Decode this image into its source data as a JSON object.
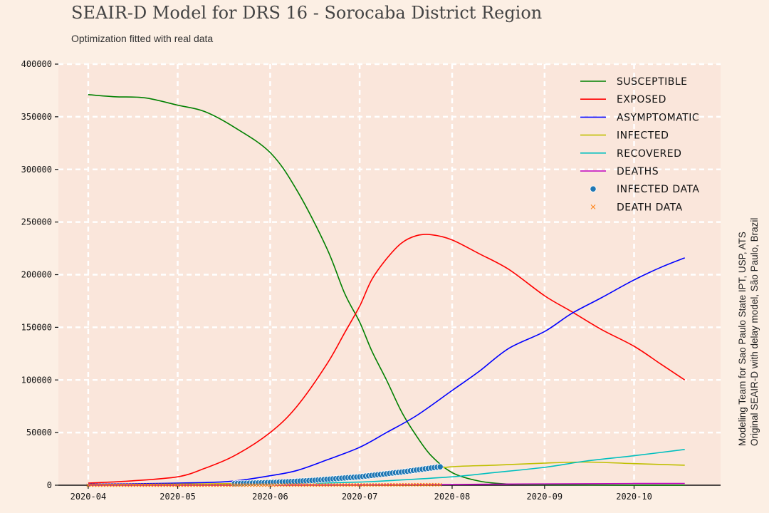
{
  "title": "SEAIR-D Model for DRS 16 - Sorocaba District Region",
  "subtitle": "Optimization fitted with real data",
  "side_note": [
    "Modeling Team for Sao Paulo State IPT, USP, ATS",
    "Original SEAIR-D with delay model, São Paulo, Brazil"
  ],
  "colors": {
    "background": "#fcefe4",
    "plot_background": "#fae6db",
    "grid": "#ffffff"
  },
  "chart_data": {
    "type": "line",
    "ylim": [
      0,
      400000
    ],
    "yticks": [
      0,
      50000,
      100000,
      150000,
      200000,
      250000,
      300000,
      350000,
      400000
    ],
    "ytick_labels": [
      "0",
      "50000",
      "100000",
      "150000",
      "200000",
      "250000",
      "300000",
      "350000",
      "400000"
    ],
    "xlim": [
      "2020-03-22",
      "2020-10-30"
    ],
    "xticks": [
      "2020-04-01",
      "2020-05-01",
      "2020-06-01",
      "2020-07-01",
      "2020-08-01",
      "2020-09-01",
      "2020-10-01"
    ],
    "xtick_labels": [
      "2020-04",
      "2020-05",
      "2020-06",
      "2020-07",
      "2020-08",
      "2020-09",
      "2020-10"
    ],
    "grid": true,
    "legend_position": "top-right",
    "series": [
      {
        "name": "Susceptible",
        "color": "#008000",
        "kind": "line",
        "x": [
          "2020-04-01",
          "2020-04-10",
          "2020-04-20",
          "2020-05-01",
          "2020-05-10",
          "2020-05-20",
          "2020-06-01",
          "2020-06-10",
          "2020-06-20",
          "2020-06-26",
          "2020-07-01",
          "2020-07-05",
          "2020-07-10",
          "2020-07-15",
          "2020-07-20",
          "2020-07-25",
          "2020-08-01",
          "2020-08-10",
          "2020-08-20",
          "2020-09-01",
          "2020-10-01",
          "2020-10-18"
        ],
        "values": [
          371000,
          369000,
          368000,
          361000,
          355000,
          340000,
          316000,
          280000,
          225000,
          182000,
          155000,
          128000,
          100000,
          70000,
          47000,
          28000,
          12000,
          4000,
          1000,
          400,
          100,
          50
        ]
      },
      {
        "name": "Exposed",
        "color": "#ff0000",
        "kind": "line",
        "x": [
          "2020-04-01",
          "2020-04-15",
          "2020-05-01",
          "2020-05-10",
          "2020-05-20",
          "2020-06-01",
          "2020-06-10",
          "2020-06-20",
          "2020-06-26",
          "2020-07-01",
          "2020-07-05",
          "2020-07-10",
          "2020-07-15",
          "2020-07-20",
          "2020-07-25",
          "2020-08-01",
          "2020-08-10",
          "2020-08-20",
          "2020-09-01",
          "2020-09-10",
          "2020-09-20",
          "2020-10-01",
          "2020-10-10",
          "2020-10-18"
        ],
        "values": [
          2000,
          4000,
          8000,
          16000,
          28000,
          50000,
          75000,
          115000,
          145000,
          170000,
          195000,
          215000,
          230000,
          237000,
          238000,
          233000,
          220000,
          205000,
          180000,
          165000,
          148000,
          132000,
          115000,
          100000
        ]
      },
      {
        "name": "Asymptomatic",
        "color": "#0000ff",
        "kind": "line",
        "x": [
          "2020-04-01",
          "2020-04-20",
          "2020-05-10",
          "2020-05-20",
          "2020-06-01",
          "2020-06-10",
          "2020-06-20",
          "2020-07-01",
          "2020-07-10",
          "2020-07-20",
          "2020-08-01",
          "2020-08-10",
          "2020-08-20",
          "2020-09-01",
          "2020-09-10",
          "2020-09-20",
          "2020-10-01",
          "2020-10-10",
          "2020-10-18"
        ],
        "values": [
          1000,
          1500,
          2500,
          4000,
          9000,
          14000,
          24000,
          36000,
          50000,
          66000,
          90000,
          108000,
          130000,
          146000,
          163000,
          178000,
          195000,
          207000,
          216000
        ]
      },
      {
        "name": "Infected",
        "color": "#bfbf00",
        "kind": "line",
        "x": [
          "2020-04-01",
          "2020-05-01",
          "2020-06-01",
          "2020-06-15",
          "2020-07-01",
          "2020-07-10",
          "2020-07-20",
          "2020-08-01",
          "2020-08-15",
          "2020-09-01",
          "2020-09-15",
          "2020-10-01",
          "2020-10-18"
        ],
        "values": [
          500,
          1000,
          2000,
          3500,
          6000,
          9000,
          13000,
          17500,
          19000,
          21000,
          22000,
          20500,
          19000
        ]
      },
      {
        "name": "Recovered",
        "color": "#00bfbf",
        "kind": "line",
        "x": [
          "2020-04-01",
          "2020-05-01",
          "2020-06-01",
          "2020-07-01",
          "2020-07-15",
          "2020-08-01",
          "2020-08-15",
          "2020-09-01",
          "2020-09-15",
          "2020-10-01",
          "2020-10-18"
        ],
        "values": [
          0,
          300,
          1000,
          3000,
          5000,
          8000,
          12000,
          17000,
          23000,
          28000,
          34000
        ]
      },
      {
        "name": "Deaths",
        "color": "#bf00bf",
        "kind": "line",
        "x": [
          "2020-04-01",
          "2020-05-01",
          "2020-06-01",
          "2020-07-01",
          "2020-08-01",
          "2020-08-15",
          "2020-09-01",
          "2020-09-15",
          "2020-10-01",
          "2020-10-18"
        ],
        "values": [
          0,
          50,
          100,
          300,
          700,
          1000,
          1200,
          1400,
          1600,
          1700
        ]
      },
      {
        "name": "Infected Data",
        "color": "#1f77b4",
        "kind": "points",
        "date_range": [
          "2020-05-20",
          "2020-07-28"
        ],
        "anchors": {
          "x": [
            "2020-05-20",
            "2020-06-01",
            "2020-06-15",
            "2020-07-01",
            "2020-07-15",
            "2020-07-28"
          ],
          "values": [
            1500,
            2500,
            4500,
            8000,
            12500,
            17500
          ]
        }
      },
      {
        "name": "Death Data",
        "color": "#ff7f0e",
        "kind": "crosses",
        "date_range": [
          "2020-04-01",
          "2020-07-28"
        ],
        "anchors": {
          "x": [
            "2020-04-01",
            "2020-05-01",
            "2020-06-01",
            "2020-07-01",
            "2020-07-28"
          ],
          "values": [
            0,
            50,
            150,
            300,
            500
          ]
        }
      }
    ]
  }
}
